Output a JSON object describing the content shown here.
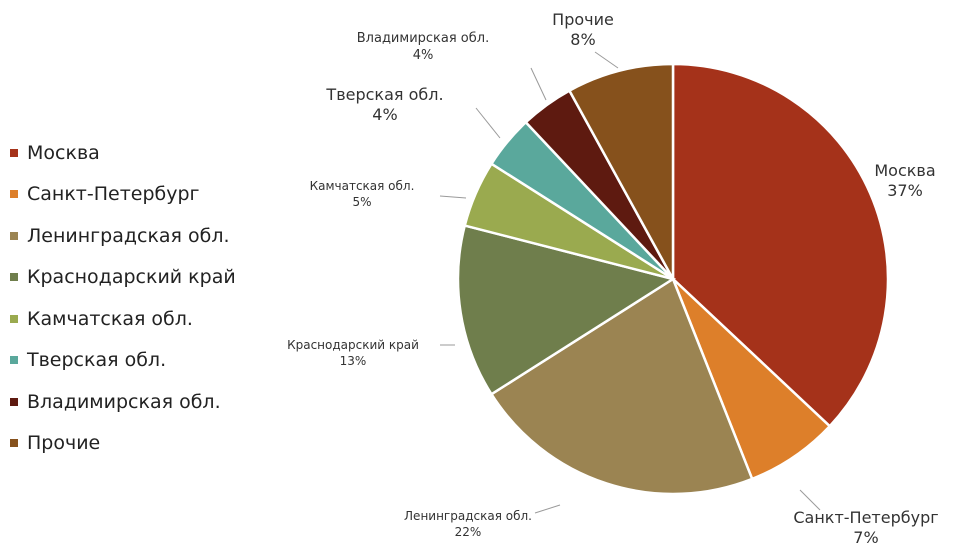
{
  "chart_data": {
    "type": "pie",
    "title": "",
    "slices": [
      {
        "label": "Москва",
        "value": 37,
        "value_label": "37%",
        "color": "#a5321a"
      },
      {
        "label": "Санкт-Петербург",
        "value": 7,
        "value_label": "7%",
        "color": "#dd7f2a"
      },
      {
        "label": "Ленинградская обл.",
        "value": 22,
        "value_label": "22%",
        "color": "#9b8452"
      },
      {
        "label": "Краснодарский край",
        "value": 13,
        "value_label": "13%",
        "color": "#6f7e4c"
      },
      {
        "label": "Камчатская обл.",
        "value": 5,
        "value_label": "5%",
        "color": "#9aaa4f"
      },
      {
        "label": "Тверская обл.",
        "value": 4,
        "value_label": "4%",
        "color": "#5aa89c"
      },
      {
        "label": "Владимирская обл.",
        "value": 4,
        "value_label": "4%",
        "color": "#5e1a10"
      },
      {
        "label": "Прочие",
        "value": 8,
        "value_label": "8%",
        "color": "#86511c"
      }
    ],
    "legend_position": "left",
    "data_labels": "outside, with leader lines"
  }
}
